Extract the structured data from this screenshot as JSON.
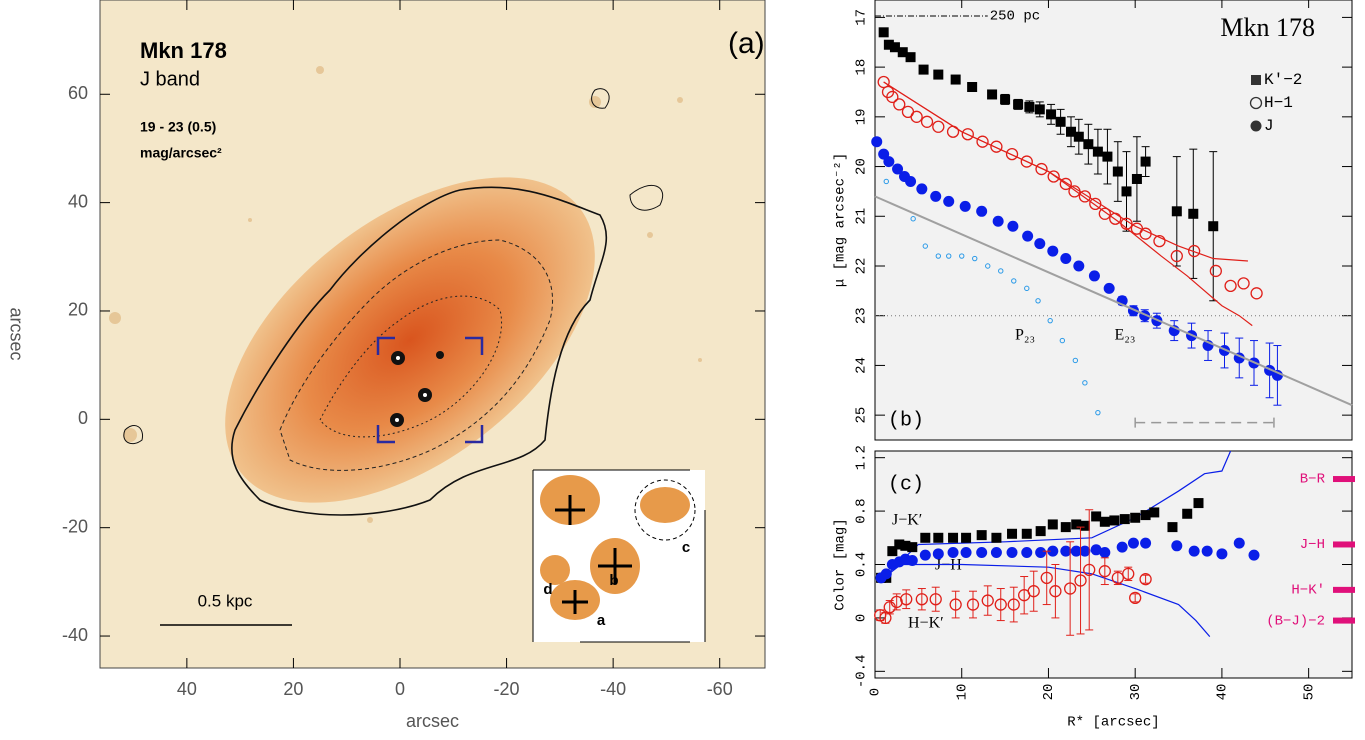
{
  "chart_data": [
    {
      "type": "image",
      "xlabel": "arcsec",
      "ylabel": "arcsec",
      "xlim": [
        56.3,
        -68.5
      ],
      "ylim": [
        -45.9,
        77.4
      ],
      "xticks": [
        40,
        20,
        0,
        -20,
        -40,
        -60
      ],
      "yticks": [
        60,
        40,
        20,
        0,
        -20,
        -40
      ],
      "annotations": [
        "Mkn 178",
        "J band",
        "19 - 23 (0.5)",
        "mag/arcsec²",
        "(a)",
        "0.5 kpc",
        "d",
        "c",
        "b",
        "a"
      ]
    },
    {
      "type": "scatter",
      "ylabel": "μ [mag arcsec⁻²]",
      "xlim": [
        0,
        55
      ],
      "ylim": [
        25.5,
        16.65
      ],
      "yticks": [
        17,
        18,
        19,
        20,
        21,
        22,
        23,
        24,
        25
      ],
      "hline": 23,
      "scale_bar": {
        "label": "250 pc",
        "x": [
          0,
          13
        ]
      },
      "dashed_bar": {
        "x": [
          30,
          46
        ],
        "y": 25.15
      },
      "annotations": [
        "Mkn 178",
        "(b)",
        "P₂₃",
        "E₂₃"
      ],
      "series": [
        {
          "name": "K′−2",
          "marker": "square",
          "color": "#000000",
          "x": [
            1,
            1.6,
            2.3,
            3.2,
            4.1,
            5.6,
            7.3,
            9.3,
            11.2,
            13.5,
            15,
            16.5,
            17.8,
            19,
            20.3,
            21.4,
            22.6,
            23.5,
            24.6,
            25.7,
            26.8,
            28,
            29,
            30.2,
            31.2,
            34.8,
            36.7,
            39
          ],
          "values": [
            17.3,
            17.55,
            17.6,
            17.7,
            17.8,
            18.05,
            18.15,
            18.25,
            18.4,
            18.55,
            18.65,
            18.75,
            18.8,
            18.85,
            18.95,
            19.1,
            19.3,
            19.4,
            19.55,
            19.7,
            19.8,
            20.1,
            20.5,
            20.25,
            19.9,
            20.9,
            20.95,
            21.2
          ],
          "errors": [
            0,
            0,
            0,
            0,
            0,
            0,
            0,
            0,
            0,
            0.08,
            0.1,
            0.1,
            0.12,
            0.15,
            0.2,
            0.25,
            0.3,
            0.35,
            0.4,
            0.45,
            0.55,
            0.6,
            0.8,
            0.85,
            0.3,
            1.1,
            1.3,
            1.5
          ]
        },
        {
          "name": "H−1",
          "marker": "open-circle",
          "color": "#e0201a",
          "x": [
            1,
            1.5,
            2,
            2.8,
            3.8,
            4.8,
            6,
            7.3,
            9,
            10.7,
            12.4,
            14,
            15.8,
            17.5,
            19.2,
            20.6,
            22,
            23,
            24.2,
            25.4,
            26.5,
            27.7,
            29,
            30.2,
            31.2,
            32.8,
            34.8,
            36.8,
            39.3,
            41,
            42.5,
            44
          ],
          "values": [
            18.3,
            18.5,
            18.6,
            18.75,
            18.9,
            19,
            19.1,
            19.2,
            19.3,
            19.35,
            19.5,
            19.6,
            19.75,
            19.9,
            20.05,
            20.2,
            20.35,
            20.5,
            20.6,
            20.75,
            20.95,
            21.05,
            21.15,
            21.25,
            21.35,
            21.5,
            21.8,
            21.7,
            22.1,
            22.4,
            22.35,
            22.55
          ]
        },
        {
          "name": "J",
          "marker": "circle",
          "color": "#0a1ee8",
          "x": [
            0.2,
            1,
            1.6,
            2.6,
            3.4,
            4.1,
            5.4,
            7,
            8.5,
            10.4,
            12.3,
            14.2,
            15.9,
            17.6,
            19,
            20.5,
            22,
            23.5,
            25.3,
            27,
            28.5,
            29.8,
            31.1,
            32.5,
            34.5,
            36.5,
            38.4,
            40.3,
            42,
            43.7,
            45.5,
            46.4
          ],
          "values": [
            19.5,
            19.75,
            19.9,
            20.05,
            20.2,
            20.3,
            20.45,
            20.6,
            20.7,
            20.8,
            20.9,
            21.1,
            21.2,
            21.4,
            21.55,
            21.7,
            21.85,
            22,
            22.2,
            22.45,
            22.7,
            22.9,
            23,
            23.1,
            23.3,
            23.4,
            23.6,
            23.7,
            23.85,
            23.95,
            24.1,
            24.2
          ],
          "errors": [
            0,
            0,
            0,
            0,
            0,
            0,
            0,
            0,
            0,
            0,
            0,
            0,
            0,
            0,
            0,
            0,
            0,
            0,
            0,
            0.05,
            0.08,
            0.1,
            0.12,
            0.15,
            0.2,
            0.25,
            0.3,
            0.35,
            0.4,
            0.45,
            0.55,
            0.6
          ]
        },
        {
          "marker": "small-open-circle",
          "color": "#2a9ae8",
          "x": [
            1.3,
            4.4,
            5.8,
            7.3,
            8.5,
            10,
            11.5,
            13,
            14.5,
            16,
            17.5,
            18.8,
            20.2,
            21.6,
            23.1,
            24.2,
            25.7
          ],
          "values": [
            20.3,
            21.05,
            21.6,
            21.8,
            21.8,
            21.8,
            21.85,
            22,
            22.1,
            22.3,
            22.45,
            22.7,
            23.1,
            23.5,
            23.9,
            24.35,
            24.95
          ]
        },
        {
          "marker": "line",
          "color": "#e0201a",
          "x": [
            1,
            10,
            20,
            30,
            35,
            39,
            43
          ],
          "values": [
            18.3,
            19.3,
            20.1,
            21.2,
            21.6,
            21.85,
            21.9
          ]
        },
        {
          "marker": "line",
          "color": "#e0201a",
          "x": [
            1,
            10,
            20,
            28,
            33,
            36,
            40,
            42,
            43.5
          ],
          "values": [
            18.3,
            19.3,
            20.1,
            21.1,
            21.8,
            22.2,
            22.8,
            23,
            23.2
          ]
        },
        {
          "marker": "line",
          "color": "#a0a0a0",
          "x": [
            0,
            55
          ],
          "values": [
            20.6,
            24.8
          ]
        }
      ]
    },
    {
      "type": "scatter",
      "ylabel": "Color [mag]",
      "xlabel": "R* [arcsec]",
      "xlim": [
        0,
        55
      ],
      "ylim": [
        -0.45,
        1.25
      ],
      "xticks": [
        0,
        10,
        20,
        30,
        40,
        50
      ],
      "yticks": [
        -0.4,
        0,
        0.4,
        0.8,
        1.2
      ],
      "annotations": [
        "(c)",
        "J−K′",
        "J−H",
        "H−K′"
      ],
      "reference_colors": [
        {
          "label": "B−R",
          "value": 1.04
        },
        {
          "label": "J−H",
          "value": 0.55
        },
        {
          "label": "H−K′",
          "value": 0.21
        },
        {
          "label": "(B−J)−2",
          "value": -0.02
        }
      ],
      "series": [
        {
          "marker": "line",
          "color": "#0a1ee8",
          "x": [
            1,
            5,
            15,
            25,
            30,
            35,
            38,
            40,
            41
          ],
          "values": [
            0.3,
            0.55,
            0.57,
            0.6,
            0.75,
            0.95,
            1.08,
            1.1,
            1.25
          ]
        },
        {
          "marker": "line",
          "color": "#0a1ee8",
          "x": [
            1,
            3,
            10,
            20,
            25,
            30,
            35,
            37,
            38.6
          ],
          "values": [
            0.3,
            0.4,
            0.4,
            0.38,
            0.33,
            0.22,
            0.1,
            -0.02,
            -0.14
          ]
        },
        {
          "marker": "square",
          "color": "#000000",
          "x": [
            0.7,
            1.3,
            2,
            2.8,
            3.5,
            4.3,
            5.8,
            7.3,
            9,
            10.5,
            12.3,
            14,
            15.8,
            17.5,
            19.1,
            20.5,
            22,
            23.2,
            24.2,
            25.5,
            26.5,
            27.6,
            28.8,
            30,
            31.2,
            32.2,
            34.3,
            36,
            37.3
          ],
          "values": [
            0.3,
            0.3,
            0.5,
            0.55,
            0.54,
            0.53,
            0.6,
            0.6,
            0.6,
            0.6,
            0.62,
            0.6,
            0.63,
            0.63,
            0.65,
            0.7,
            0.68,
            0.7,
            0.69,
            0.76,
            0.72,
            0.73,
            0.74,
            0.75,
            0.77,
            0.79,
            0.68,
            0.78,
            0.86
          ]
        },
        {
          "marker": "circle",
          "color": "#0a1ee8",
          "x": [
            0.7,
            1.3,
            2,
            2.8,
            3.5,
            4.3,
            5.8,
            7.3,
            9,
            10.5,
            12.3,
            14,
            15.8,
            17.5,
            19.1,
            20.5,
            22,
            23.2,
            24.2,
            25.5,
            26.5,
            28.5,
            29.8,
            31.2,
            34.8,
            36.8,
            38.3,
            40,
            42,
            43.7
          ],
          "values": [
            0.3,
            0.33,
            0.4,
            0.42,
            0.44,
            0.43,
            0.47,
            0.48,
            0.49,
            0.49,
            0.49,
            0.49,
            0.49,
            0.49,
            0.49,
            0.5,
            0.5,
            0.5,
            0.5,
            0.51,
            0.49,
            0.53,
            0.56,
            0.56,
            0.54,
            0.5,
            0.5,
            0.48,
            0.56,
            0.47
          ]
        },
        {
          "marker": "open-circle",
          "color": "#e0201a",
          "x": [
            0.6,
            1.2,
            1.7,
            2.5,
            3.6,
            5.4,
            7,
            9.3,
            11.3,
            13,
            14.5,
            16,
            17.2,
            18.3,
            19.8,
            20.8,
            22.5,
            23.7,
            24.7,
            26.5,
            28,
            29.2,
            30,
            31.2
          ],
          "values": [
            0.02,
            0,
            0.08,
            0.12,
            0.14,
            0.14,
            0.14,
            0.1,
            0.1,
            0.13,
            0.1,
            0.1,
            0.17,
            0.2,
            0.3,
            0.2,
            0.22,
            0.28,
            0.36,
            0.35,
            0.3,
            0.33,
            0.15,
            0.29
          ],
          "errors": [
            0.04,
            0.04,
            0.05,
            0.06,
            0.07,
            0.08,
            0.09,
            0.1,
            0.1,
            0.11,
            0.12,
            0.13,
            0.14,
            0.15,
            0.2,
            0.2,
            0.35,
            0.4,
            0.45,
            0.1,
            0.05,
            0.05,
            0.03,
            0.03
          ]
        }
      ]
    }
  ]
}
